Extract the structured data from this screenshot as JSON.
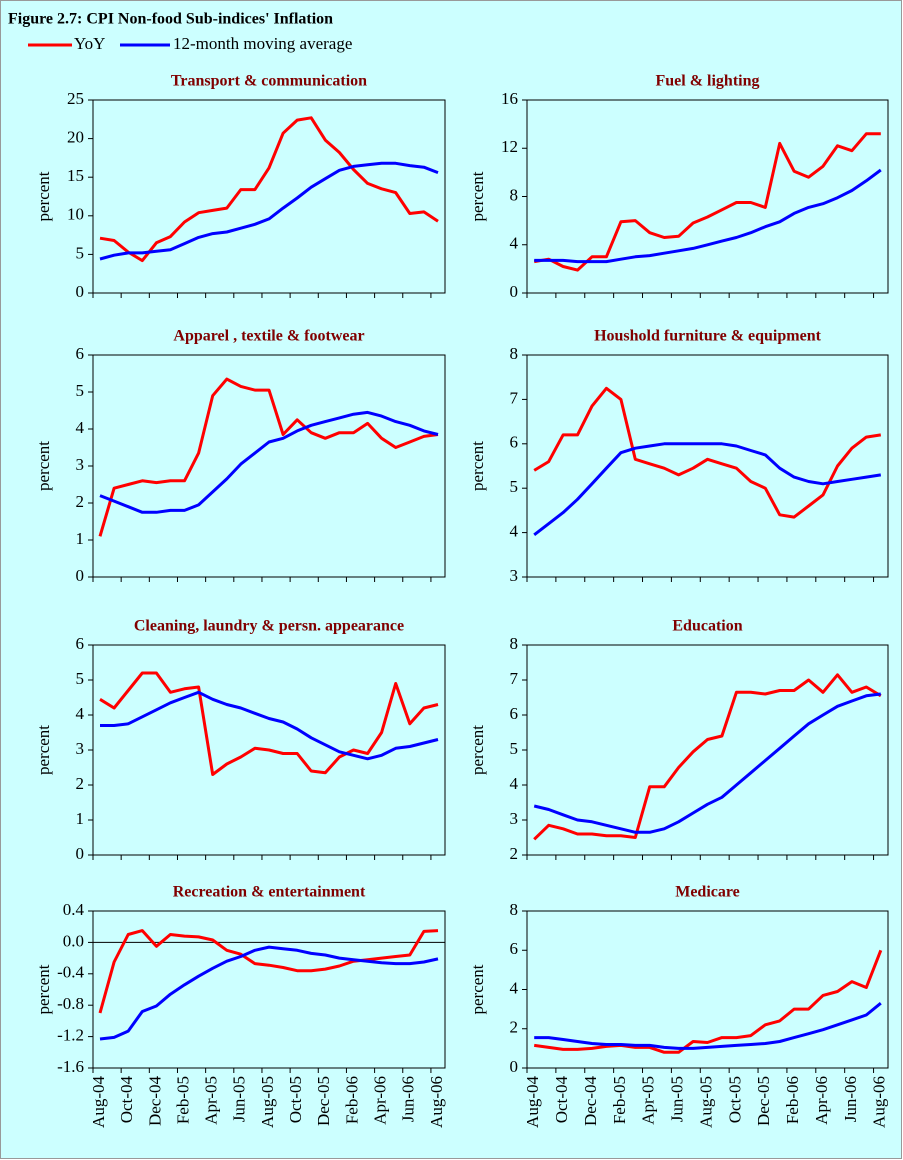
{
  "title": "Figure 2.7: CPI Non-food Sub-indices' Inflation",
  "legend": [
    {
      "name": "YoY",
      "color": "#ff0000"
    },
    {
      "name": "12-month moving average",
      "color": "#0000ff"
    }
  ],
  "chart_data": [
    {
      "type": "line",
      "title": "Transport & communication",
      "y_label": "percent",
      "categories": [
        null,
        null,
        null,
        null,
        null,
        null,
        null,
        null,
        null,
        null,
        null,
        null,
        null,
        null,
        null,
        null,
        null,
        null,
        null,
        null,
        null,
        null,
        null,
        null,
        null
      ],
      "series": [
        {
          "values": [
            7.1,
            6.8,
            5.3,
            4.2,
            6.5,
            7.3,
            9.2,
            10.4,
            10.7,
            11.0,
            13.4,
            13.4,
            16.2,
            20.7,
            22.4,
            22.7,
            19.8,
            18.2,
            16.0,
            14.2,
            13.5,
            13.0,
            10.3,
            10.5,
            9.3
          ]
        },
        {
          "values": [
            4.4,
            4.9,
            5.2,
            5.2,
            5.4,
            5.6,
            6.4,
            7.2,
            7.7,
            7.9,
            8.4,
            8.9,
            9.6,
            11.0,
            12.3,
            13.7,
            14.8,
            15.9,
            16.4,
            16.6,
            16.8,
            16.8,
            16.5,
            16.3,
            15.6
          ]
        }
      ],
      "ylim": [
        0,
        25
      ],
      "yticks": [
        0,
        5,
        10,
        15,
        20,
        25
      ]
    },
    {
      "type": "line",
      "title": "Fuel & lighting",
      "y_label": "percent",
      "categories": [
        null,
        null,
        null,
        null,
        null,
        null,
        null,
        null,
        null,
        null,
        null,
        null,
        null,
        null,
        null,
        null,
        null,
        null,
        null,
        null,
        null,
        null,
        null,
        null,
        null
      ],
      "series": [
        {
          "values": [
            2.6,
            2.8,
            2.2,
            1.9,
            3.0,
            3.0,
            5.9,
            6.0,
            5.0,
            4.6,
            4.7,
            5.8,
            6.3,
            6.9,
            7.5,
            7.5,
            7.1,
            12.4,
            10.1,
            9.6,
            10.5,
            12.2,
            11.8,
            13.2,
            13.2
          ]
        },
        {
          "values": [
            2.7,
            2.7,
            2.7,
            2.6,
            2.6,
            2.6,
            2.8,
            3.0,
            3.1,
            3.3,
            3.5,
            3.7,
            4.0,
            4.3,
            4.6,
            5.0,
            5.5,
            5.9,
            6.6,
            7.1,
            7.4,
            7.9,
            8.5,
            9.3,
            10.2
          ]
        }
      ],
      "ylim": [
        0,
        16
      ],
      "yticks": [
        0,
        4,
        8,
        12,
        16
      ]
    },
    {
      "type": "line",
      "title": "Apparel , textile & footwear",
      "y_label": "percent",
      "categories": [
        null,
        null,
        null,
        null,
        null,
        null,
        null,
        null,
        null,
        null,
        null,
        null,
        null,
        null,
        null,
        null,
        null,
        null,
        null,
        null,
        null,
        null,
        null,
        null,
        null
      ],
      "series": [
        {
          "values": [
            1.1,
            2.4,
            2.5,
            2.6,
            2.55,
            2.6,
            2.6,
            3.35,
            4.9,
            5.35,
            5.15,
            5.05,
            5.05,
            3.85,
            4.25,
            3.9,
            3.75,
            3.9,
            3.9,
            4.15,
            3.75,
            3.5,
            3.65,
            3.8,
            3.85
          ]
        },
        {
          "values": [
            2.2,
            2.05,
            1.9,
            1.75,
            1.75,
            1.8,
            1.8,
            1.95,
            2.3,
            2.65,
            3.05,
            3.35,
            3.65,
            3.75,
            3.95,
            4.1,
            4.2,
            4.3,
            4.4,
            4.45,
            4.35,
            4.2,
            4.1,
            3.95,
            3.85
          ]
        }
      ],
      "ylim": [
        0,
        6
      ],
      "yticks": [
        0,
        1,
        2,
        3,
        4,
        5,
        6
      ]
    },
    {
      "type": "line",
      "title": "Houshold furniture & equipment",
      "y_label": "percent",
      "categories": [
        null,
        null,
        null,
        null,
        null,
        null,
        null,
        null,
        null,
        null,
        null,
        null,
        null,
        null,
        null,
        null,
        null,
        null,
        null,
        null,
        null,
        null,
        null,
        null,
        null
      ],
      "series": [
        {
          "values": [
            5.4,
            5.6,
            6.2,
            6.2,
            6.85,
            7.25,
            7.0,
            5.65,
            5.55,
            5.45,
            5.3,
            5.45,
            5.65,
            5.55,
            5.45,
            5.15,
            5.0,
            4.4,
            4.35,
            4.6,
            4.85,
            5.5,
            5.9,
            6.15,
            6.2
          ]
        },
        {
          "values": [
            3.95,
            4.2,
            4.45,
            4.75,
            5.1,
            5.45,
            5.8,
            5.9,
            5.95,
            6.0,
            6.0,
            6.0,
            6.0,
            6.0,
            5.95,
            5.85,
            5.75,
            5.45,
            5.25,
            5.15,
            5.1,
            5.15,
            5.2,
            5.25,
            5.3
          ]
        }
      ],
      "ylim": [
        3,
        8
      ],
      "yticks": [
        3,
        4,
        5,
        6,
        7,
        8
      ]
    },
    {
      "type": "line",
      "title": "Cleaning, laundry & persn. appearance",
      "y_label": "percent",
      "categories": [
        null,
        null,
        null,
        null,
        null,
        null,
        null,
        null,
        null,
        null,
        null,
        null,
        null,
        null,
        null,
        null,
        null,
        null,
        null,
        null,
        null,
        null,
        null,
        null,
        null
      ],
      "series": [
        {
          "values": [
            4.45,
            4.2,
            4.7,
            5.2,
            5.2,
            4.65,
            4.75,
            4.8,
            2.3,
            2.6,
            2.8,
            3.05,
            3.0,
            2.9,
            2.9,
            2.4,
            2.35,
            2.8,
            3.0,
            2.9,
            3.5,
            4.9,
            3.75,
            4.2,
            4.3
          ]
        },
        {
          "values": [
            3.7,
            3.7,
            3.75,
            3.95,
            4.15,
            4.35,
            4.5,
            4.65,
            4.45,
            4.3,
            4.2,
            4.05,
            3.9,
            3.8,
            3.6,
            3.35,
            3.15,
            2.95,
            2.85,
            2.75,
            2.85,
            3.05,
            3.1,
            3.2,
            3.3
          ]
        }
      ],
      "ylim": [
        0,
        6
      ],
      "yticks": [
        0,
        1,
        2,
        3,
        4,
        5,
        6
      ]
    },
    {
      "type": "line",
      "title": "Education",
      "y_label": "percent",
      "categories": [
        null,
        null,
        null,
        null,
        null,
        null,
        null,
        null,
        null,
        null,
        null,
        null,
        null,
        null,
        null,
        null,
        null,
        null,
        null,
        null,
        null,
        null,
        null,
        null,
        null
      ],
      "series": [
        {
          "values": [
            2.45,
            2.85,
            2.75,
            2.6,
            2.6,
            2.55,
            2.55,
            2.5,
            3.95,
            3.95,
            4.5,
            4.95,
            5.3,
            5.4,
            6.65,
            6.65,
            6.6,
            6.7,
            6.7,
            7.0,
            6.65,
            7.15,
            6.65,
            6.8,
            6.55
          ]
        },
        {
          "values": [
            3.4,
            3.3,
            3.15,
            3.0,
            2.95,
            2.85,
            2.75,
            2.65,
            2.65,
            2.75,
            2.95,
            3.2,
            3.45,
            3.65,
            4.0,
            4.35,
            4.7,
            5.05,
            5.4,
            5.75,
            6.0,
            6.25,
            6.4,
            6.55,
            6.6
          ]
        }
      ],
      "ylim": [
        2,
        8
      ],
      "yticks": [
        2,
        3,
        4,
        5,
        6,
        7,
        8
      ]
    },
    {
      "type": "line",
      "title": "Recreation & entertainment",
      "y_label": "percent",
      "categories": [
        "Aug-04",
        null,
        "Oct-04",
        null,
        "Dec-04",
        null,
        "Feb-05",
        null,
        "Apr-05",
        null,
        "Jun-05",
        null,
        "Aug-05",
        null,
        "Oct-05",
        null,
        "Dec-05",
        null,
        "Feb-06",
        null,
        "Apr-06",
        null,
        "Jun-06",
        null,
        "Aug-06"
      ],
      "series": [
        {
          "values": [
            -0.9,
            -0.25,
            0.1,
            0.15,
            -0.05,
            0.1,
            0.08,
            0.07,
            0.03,
            -0.1,
            -0.15,
            -0.27,
            -0.29,
            -0.32,
            -0.36,
            -0.36,
            -0.34,
            -0.3,
            -0.24,
            -0.22,
            -0.2,
            -0.18,
            -0.16,
            0.14,
            0.15
          ]
        },
        {
          "values": [
            -1.23,
            -1.21,
            -1.13,
            -0.88,
            -0.81,
            -0.66,
            -0.54,
            -0.43,
            -0.33,
            -0.24,
            -0.18,
            -0.1,
            -0.06,
            -0.08,
            -0.1,
            -0.14,
            -0.16,
            -0.2,
            -0.22,
            -0.24,
            -0.26,
            -0.27,
            -0.27,
            -0.25,
            -0.21
          ]
        }
      ],
      "ylim": [
        -1.6,
        0.4
      ],
      "yticks": [
        -1.6,
        -1.2,
        -0.8,
        -0.4,
        {
          "value": 0,
          "label": "0.0"
        },
        0.4
      ]
    },
    {
      "type": "line",
      "title": "Medicare",
      "y_label": "percent",
      "categories": [
        "Aug-04",
        null,
        "Oct-04",
        null,
        "Dec-04",
        null,
        "Feb-05",
        null,
        "Apr-05",
        null,
        "Jun-05",
        null,
        "Aug-05",
        null,
        "Oct-05",
        null,
        "Dec-05",
        null,
        "Feb-06",
        null,
        "Apr-06",
        null,
        "Jun-06",
        null,
        "Aug-06"
      ],
      "series": [
        {
          "values": [
            1.15,
            1.05,
            0.95,
            0.95,
            1.0,
            1.1,
            1.15,
            1.05,
            1.05,
            0.8,
            0.8,
            1.35,
            1.3,
            1.55,
            1.55,
            1.65,
            2.2,
            2.4,
            3.0,
            3.0,
            3.7,
            3.9,
            4.4,
            4.1,
            6.0
          ]
        },
        {
          "values": [
            1.55,
            1.55,
            1.45,
            1.35,
            1.25,
            1.2,
            1.2,
            1.15,
            1.15,
            1.05,
            1.0,
            1.0,
            1.05,
            1.1,
            1.15,
            1.2,
            1.25,
            1.35,
            1.55,
            1.75,
            1.95,
            2.2,
            2.45,
            2.7,
            3.3
          ]
        }
      ],
      "ylim": [
        0,
        8
      ],
      "yticks": [
        0,
        2,
        4,
        6,
        8
      ]
    }
  ]
}
